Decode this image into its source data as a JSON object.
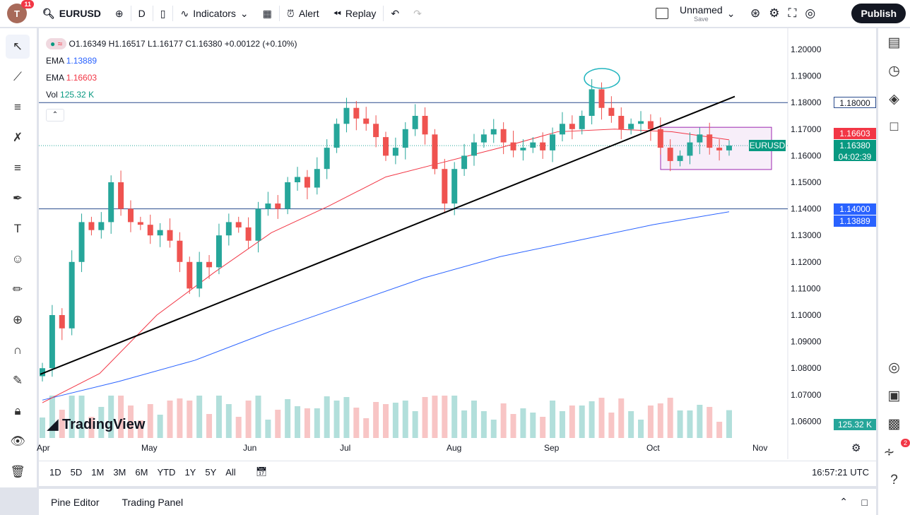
{
  "topbar": {
    "avatar_letter": "T",
    "notif_count": "11",
    "symbol": "EURUSD",
    "interval": "D",
    "indicators": "Indicators",
    "alert": "Alert",
    "replay": "Replay",
    "layout_name": "Unnamed",
    "layout_status": "Save",
    "publish": "Publish"
  },
  "legend": {
    "ohlc": "O1.16349 H1.16517 L1.16177 C1.16380 +0.00122 (+0.10%)",
    "ema1_label": "EMA",
    "ema1_value": "1.13889",
    "ema2_label": "EMA",
    "ema2_value": "1.16603",
    "vol_label": "Vol",
    "vol_value": "125.32 K"
  },
  "colors": {
    "up": "#26a69a",
    "down": "#ef5350",
    "ema_fast": "#f23645",
    "ema_slow": "#2962ff",
    "accent": "#089981"
  },
  "price_axis": {
    "ticks": [
      "1.20000",
      "1.19000",
      "1.18000",
      "1.17000",
      "1.16000",
      "1.15000",
      "1.14000",
      "1.13000",
      "1.12000",
      "1.11000",
      "1.10000",
      "1.09000",
      "1.08000",
      "1.07000",
      "1.06000"
    ],
    "labels": {
      "level_high": "1.18000",
      "ema_fast": "1.16603",
      "symbol": "EURUSD",
      "last": "1.16380",
      "countdown": "04:02:39",
      "level_low": "1.14000",
      "ema_slow": "1.13889",
      "volume": "125.32 K"
    }
  },
  "time_axis": [
    "Apr",
    "May",
    "Jun",
    "Jul",
    "Aug",
    "Sep",
    "Oct",
    "Nov"
  ],
  "ranges": [
    "1D",
    "5D",
    "1M",
    "3M",
    "6M",
    "YTD",
    "1Y",
    "5Y",
    "All"
  ],
  "clock": "16:57:21 UTC",
  "watermark": "TradingView",
  "bottom_panel": {
    "pine": "Pine Editor",
    "trading": "Trading Panel"
  },
  "right_notif": "2",
  "chart_data": {
    "type": "candlestick",
    "ylim": [
      1.06,
      1.205
    ],
    "closes": [
      1.08,
      1.1,
      1.095,
      1.12,
      1.135,
      1.132,
      1.135,
      1.15,
      1.14,
      1.135,
      1.134,
      1.13,
      1.132,
      1.128,
      1.12,
      1.11,
      1.12,
      1.118,
      1.13,
      1.135,
      1.133,
      1.128,
      1.14,
      1.142,
      1.14,
      1.15,
      1.152,
      1.148,
      1.155,
      1.163,
      1.172,
      1.178,
      1.174,
      1.172,
      1.167,
      1.16,
      1.163,
      1.17,
      1.175,
      1.168,
      1.155,
      1.142,
      1.155,
      1.16,
      1.165,
      1.168,
      1.17,
      1.165,
      1.162,
      1.163,
      1.165,
      1.162,
      1.168,
      1.172,
      1.17,
      1.175,
      1.185,
      1.178,
      1.175,
      1.17,
      1.172,
      1.173,
      1.17,
      1.163,
      1.158,
      1.16,
      1.165,
      1.168,
      1.163,
      1.162,
      1.1638
    ],
    "ema_fast": [
      1.067,
      1.078,
      1.1,
      1.116,
      1.131,
      1.141,
      1.152,
      1.1575,
      1.163,
      1.169,
      1.17,
      1.169,
      1.166
    ],
    "ema_slow": [
      1.068,
      1.075,
      1.083,
      1.094,
      1.104,
      1.114,
      1.122,
      1.128,
      1.134,
      1.1389
    ],
    "hlines": [
      1.18,
      1.14
    ],
    "trendline": [
      1.0777,
      1.1823
    ],
    "range_box": [
      1.1707,
      1.1548
    ]
  }
}
